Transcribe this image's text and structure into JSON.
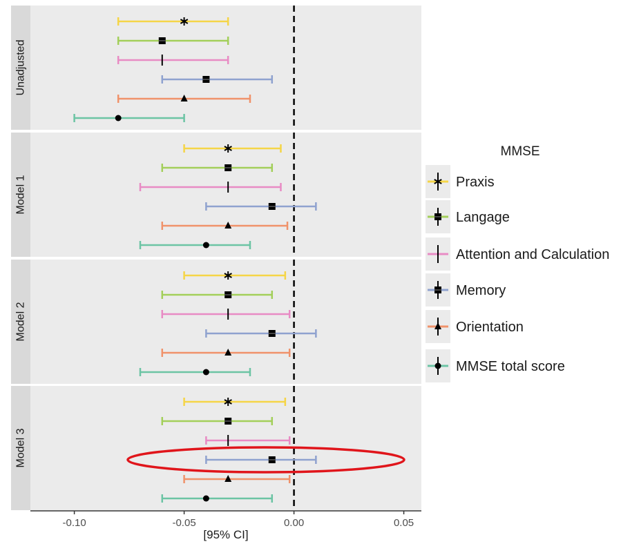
{
  "chart_data": {
    "type": "forest-plot",
    "xlabel": "[95% CI]",
    "xlim": [
      -0.12,
      0.058
    ],
    "x_ticks": [
      {
        "value": -0.1,
        "label": "-0.10"
      },
      {
        "value": -0.05,
        "label": "-0.05"
      },
      {
        "value": 0.0,
        "label": "0.00"
      },
      {
        "value": 0.05,
        "label": "0.05"
      }
    ],
    "reference_line": 0.0,
    "legend": {
      "title": "MMSE",
      "placement": "right",
      "entries": [
        "Praxis",
        "Langage",
        "Attention and Calculation",
        "Memory",
        "Orientation",
        "MMSE total score"
      ]
    },
    "series_styles": [
      {
        "name": "Praxis",
        "color": "#F5D547",
        "shape": "asterisk"
      },
      {
        "name": "Langage",
        "color": "#A3CF5A",
        "shape": "square"
      },
      {
        "name": "Attention and Calculation",
        "color": "#E88BC4",
        "shape": "bar"
      },
      {
        "name": "Memory",
        "color": "#8FA2CF",
        "shape": "square"
      },
      {
        "name": "Orientation",
        "color": "#F0926A",
        "shape": "triangle"
      },
      {
        "name": "MMSE total score",
        "color": "#6CC4A4",
        "shape": "circle"
      }
    ],
    "panels": [
      {
        "label": "Unadjusted",
        "rows": [
          {
            "series": "Praxis",
            "estimate": -0.05,
            "lower": -0.08,
            "upper": -0.03
          },
          {
            "series": "Langage",
            "estimate": -0.06,
            "lower": -0.08,
            "upper": -0.03
          },
          {
            "series": "Attention and Calculation",
            "estimate": -0.06,
            "lower": -0.08,
            "upper": -0.03
          },
          {
            "series": "Memory",
            "estimate": -0.04,
            "lower": -0.06,
            "upper": -0.01
          },
          {
            "series": "Orientation",
            "estimate": -0.05,
            "lower": -0.08,
            "upper": -0.02
          },
          {
            "series": "MMSE total score",
            "estimate": -0.08,
            "lower": -0.1,
            "upper": -0.05
          }
        ]
      },
      {
        "label": "Model 1",
        "rows": [
          {
            "series": "Praxis",
            "estimate": -0.03,
            "lower": -0.05,
            "upper": -0.006
          },
          {
            "series": "Langage",
            "estimate": -0.03,
            "lower": -0.06,
            "upper": -0.01
          },
          {
            "series": "Attention and Calculation",
            "estimate": -0.03,
            "lower": -0.07,
            "upper": -0.006
          },
          {
            "series": "Memory",
            "estimate": -0.01,
            "lower": -0.04,
            "upper": 0.01
          },
          {
            "series": "Orientation",
            "estimate": -0.03,
            "lower": -0.06,
            "upper": -0.003
          },
          {
            "series": "MMSE total score",
            "estimate": -0.04,
            "lower": -0.07,
            "upper": -0.02
          }
        ]
      },
      {
        "label": "Model 2",
        "rows": [
          {
            "series": "Praxis",
            "estimate": -0.03,
            "lower": -0.05,
            "upper": -0.004
          },
          {
            "series": "Langage",
            "estimate": -0.03,
            "lower": -0.06,
            "upper": -0.01
          },
          {
            "series": "Attention and Calculation",
            "estimate": -0.03,
            "lower": -0.06,
            "upper": -0.002
          },
          {
            "series": "Memory",
            "estimate": -0.01,
            "lower": -0.04,
            "upper": 0.01
          },
          {
            "series": "Orientation",
            "estimate": -0.03,
            "lower": -0.06,
            "upper": -0.002
          },
          {
            "series": "MMSE total score",
            "estimate": -0.04,
            "lower": -0.07,
            "upper": -0.02
          }
        ]
      },
      {
        "label": "Model 3",
        "rows": [
          {
            "series": "Praxis",
            "estimate": -0.03,
            "lower": -0.05,
            "upper": -0.004
          },
          {
            "series": "Langage",
            "estimate": -0.03,
            "lower": -0.06,
            "upper": -0.01
          },
          {
            "series": "Attention and Calculation",
            "estimate": -0.03,
            "lower": -0.04,
            "upper": -0.002
          },
          {
            "series": "Memory",
            "estimate": -0.01,
            "lower": -0.04,
            "upper": 0.01,
            "highlighted": true
          },
          {
            "series": "Orientation",
            "estimate": -0.03,
            "lower": -0.05,
            "upper": -0.002
          },
          {
            "series": "MMSE total score",
            "estimate": -0.04,
            "lower": -0.06,
            "upper": -0.01
          }
        ]
      }
    ],
    "annotation": {
      "type": "ellipse",
      "color": "#E0151B",
      "panel": "Model 3",
      "series": "Memory"
    }
  }
}
